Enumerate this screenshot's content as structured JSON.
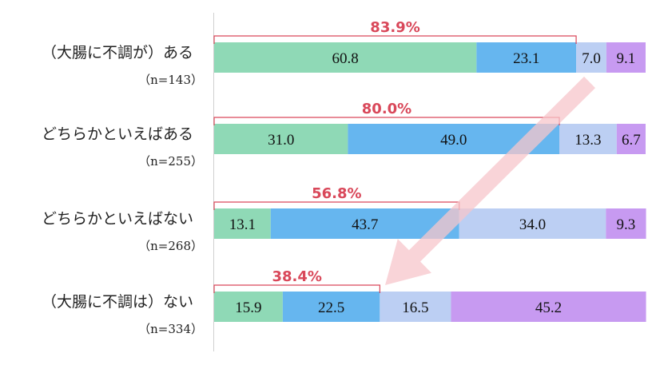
{
  "chart_data": {
    "type": "bar",
    "orientation": "horizontal",
    "stacked": true,
    "title": "",
    "xlabel": "",
    "ylabel": "",
    "xlim": [
      0,
      100
    ],
    "grid": false,
    "legend": "none",
    "categories": [
      {
        "label": "（大腸に不調が）ある",
        "n": "（n=143）"
      },
      {
        "label": "どちらかといえばある",
        "n": "（n=255）"
      },
      {
        "label": "どちらかといえばない",
        "n": "（n=268）"
      },
      {
        "label": "（大腸に不調は）ない",
        "n": "（n=334）"
      }
    ],
    "series": [
      {
        "color": "#8fd9b6",
        "values": [
          60.8,
          31.0,
          13.1,
          15.9
        ],
        "labels": [
          "60.8",
          "31.0",
          "13.1",
          "15.9"
        ]
      },
      {
        "color": "#66b6ef",
        "values": [
          23.1,
          49.0,
          43.7,
          22.5
        ],
        "labels": [
          "23.1",
          "49.0",
          "43.7",
          "22.5"
        ]
      },
      {
        "color": "#bccff3",
        "values": [
          7.0,
          13.3,
          34.0,
          16.5
        ],
        "labels": [
          "7.0",
          "13.3",
          "34.0",
          "16.5"
        ]
      },
      {
        "color": "#c79af1",
        "values": [
          9.1,
          6.7,
          9.3,
          45.2
        ],
        "labels": [
          "9.1",
          "6.7",
          "9.3",
          "45.2"
        ]
      }
    ],
    "bracket_totals": {
      "values": [
        83.9,
        80.0,
        56.8,
        38.4
      ],
      "labels": [
        "83.9%",
        "80.0%",
        "56.8%",
        "38.4%"
      ],
      "color": "#d9485a"
    },
    "trend_arrow": {
      "from_category": 0,
      "to_category": 3,
      "color": "#f7c6cb"
    }
  }
}
